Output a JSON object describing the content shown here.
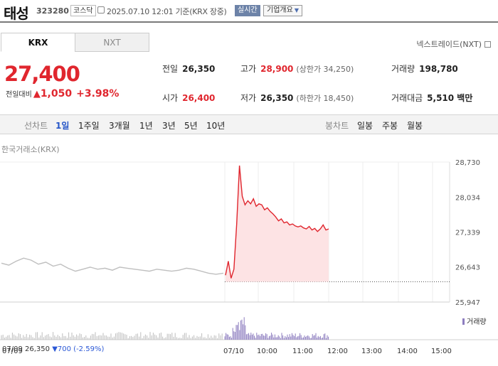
{
  "header": {
    "name": "태성",
    "code": "323280",
    "market": "코스닥",
    "datetime": "2025.07.10 12:01",
    "basis": "기준(KRX 장중)",
    "live_label": "실시간",
    "company_info": "기업개요"
  },
  "tabs": {
    "krx": "KRX",
    "nxt": "NXT"
  },
  "nxt_link": "넥스트레이드(NXT)",
  "quote": {
    "price": "27,400",
    "change_label": "전일대비",
    "change_arrow": "▲",
    "change": "1,050",
    "change_pct": "+3.98%"
  },
  "stats": {
    "prev_close": {
      "label": "전일",
      "value": "26,350"
    },
    "open": {
      "label": "시가",
      "value": "26,400"
    },
    "high": {
      "label": "고가",
      "value": "28,900",
      "sub": "(상한가 34,250)"
    },
    "low": {
      "label": "저가",
      "value": "26,350",
      "sub": "(하한가 18,450)"
    },
    "volume": {
      "label": "거래량",
      "value": "198,780"
    },
    "amount": {
      "label": "거래대금",
      "value": "5,510 백만"
    }
  },
  "period_bar": {
    "line_label": "선차트",
    "line_periods": [
      "1일",
      "1주일",
      "3개월",
      "1년",
      "3년",
      "5년",
      "10년"
    ],
    "selected": "1일",
    "candle_label": "봉차트",
    "candle_periods": [
      "일봉",
      "주봉",
      "월봉"
    ]
  },
  "chart_caption": "한국거래소(KRX)",
  "volume_legend": "거래량",
  "footer": {
    "prev_date": "07/09",
    "prev_close": "26,350",
    "change": "▼700",
    "pct": "(-2.59%)"
  },
  "colors": {
    "up": "#e0262e",
    "down": "#2b58d6",
    "accent": "#6d83a8"
  },
  "chart_data": {
    "type": "line",
    "ylim": [
      25947,
      28730
    ],
    "y_ticks": [
      28730,
      28034,
      27339,
      26643,
      25947
    ],
    "x_ticks": [
      "07/09",
      "07/10",
      "10:00",
      "11:00",
      "12:00",
      "13:00",
      "14:00",
      "15:00"
    ],
    "reference_line": 26350,
    "grid": true,
    "series": [
      {
        "name": "prev_day",
        "x": [
          0,
          2,
          4,
          6,
          8,
          10,
          12,
          14,
          16,
          18,
          20,
          22,
          24,
          26,
          28,
          30,
          32,
          34,
          36,
          38,
          40,
          42,
          44,
          46,
          48,
          50,
          52,
          54,
          56,
          58,
          60
        ],
        "values": [
          26720,
          26680,
          26760,
          26820,
          26780,
          26700,
          26740,
          26660,
          26700,
          26620,
          26560,
          26600,
          26640,
          26600,
          26620,
          26580,
          26640,
          26620,
          26600,
          26580,
          26560,
          26600,
          26580,
          26560,
          26580,
          26620,
          26600,
          26560,
          26520,
          26500,
          26520
        ]
      },
      {
        "name": "today",
        "x": [
          0,
          1,
          2,
          3,
          4,
          5,
          6,
          7,
          8,
          9,
          10,
          11,
          12,
          13,
          14,
          15,
          16,
          17,
          18,
          19,
          20,
          21,
          22,
          23,
          24,
          25,
          26,
          27,
          28,
          29,
          30,
          31,
          32,
          33,
          34,
          35,
          36,
          37
        ],
        "values": [
          26480,
          26760,
          26420,
          26600,
          27500,
          28660,
          28050,
          27880,
          27960,
          27900,
          28000,
          27850,
          27900,
          27880,
          27780,
          27820,
          27750,
          27700,
          27640,
          27560,
          27600,
          27520,
          27540,
          27480,
          27500,
          27460,
          27440,
          27460,
          27420,
          27400,
          27450,
          27380,
          27410,
          27350,
          27400,
          27480,
          27380,
          27400
        ]
      }
    ]
  }
}
